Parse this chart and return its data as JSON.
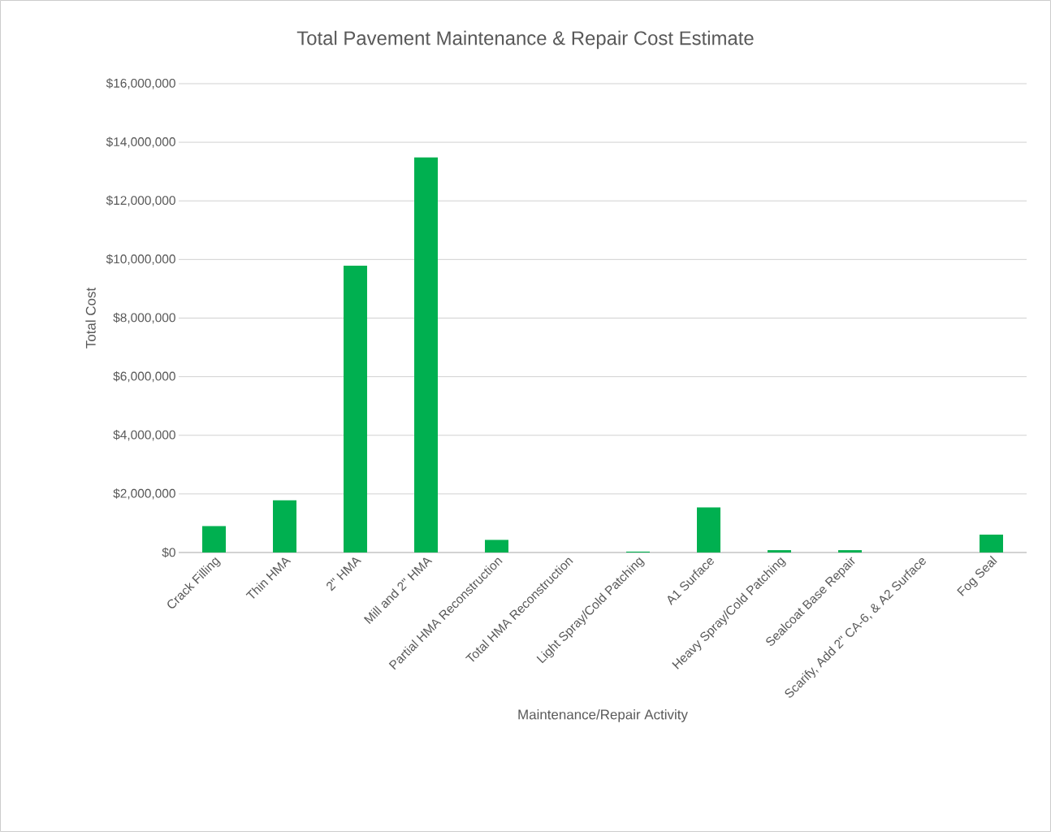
{
  "chart_data": {
    "type": "bar",
    "title": "Total Pavement Maintenance & Repair Cost Estimate",
    "xlabel": "Maintenance/Repair Activity",
    "ylabel": "Total Cost",
    "categories": [
      "Crack Filling",
      "Thin HMA",
      "2\" HMA",
      "Mill and 2\" HMA",
      "Partial HMA Reconstruction",
      "Total HMA Reconstruction",
      "Light Spray/Cold Patching",
      "A1 Surface",
      "Heavy Spray/Cold Patching",
      "Sealcoat Base Repair",
      "Scarify, Add 2\" CA-6, & A2 Surface",
      "Fog Seal"
    ],
    "values": [
      900000,
      1780000,
      9790000,
      13480000,
      430000,
      0,
      30000,
      1540000,
      80000,
      80000,
      0,
      610000
    ],
    "color": "#00b050",
    "ylim": [
      0,
      16000000
    ],
    "yticks": [
      {
        "value": 0,
        "label": "$0"
      },
      {
        "value": 2000000,
        "label": "$2,000,000"
      },
      {
        "value": 4000000,
        "label": "$4,000,000"
      },
      {
        "value": 6000000,
        "label": "$6,000,000"
      },
      {
        "value": 8000000,
        "label": "$8,000,000"
      },
      {
        "value": 10000000,
        "label": "$10,000,000"
      },
      {
        "value": 12000000,
        "label": "$12,000,000"
      },
      {
        "value": 14000000,
        "label": "$14,000,000"
      },
      {
        "value": 16000000,
        "label": "$16,000,000"
      }
    ],
    "grid": "y"
  }
}
